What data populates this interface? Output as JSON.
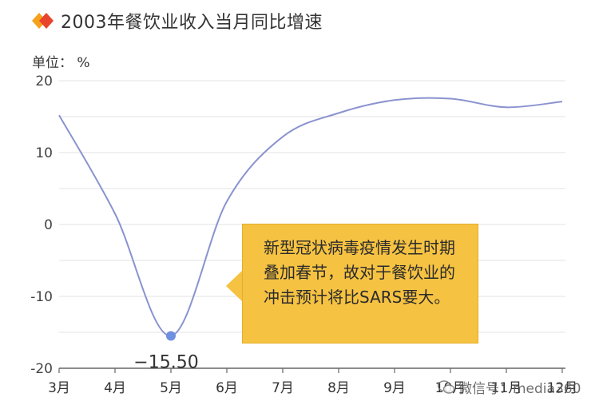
{
  "title": "2003年餐饮业收入当月同比增速",
  "unit_label": "单位：  %",
  "callout_text": "新型冠状病毒疫情发生时期叠加春节，故对于餐饮业的冲击预计将比SARS要大。",
  "watermark_text": "微信号：media360",
  "colors": {
    "line": "#8a93cf",
    "marker": "#6f8fe0",
    "grid": "#e3e3e3",
    "axis": "#666666",
    "callout_bg": "#f5c242",
    "icon_orange": "#f4a21c",
    "icon_red": "#e8452c"
  },
  "chart_data": {
    "type": "line",
    "title": "2003年餐饮业收入当月同比增速",
    "ylabel": "单位：  %",
    "categories": [
      "3月",
      "4月",
      "5月",
      "6月",
      "7月",
      "8月",
      "9月",
      "10月",
      "11月",
      "12月"
    ],
    "values": [
      15.2,
      1.5,
      -15.5,
      3.2,
      12.2,
      15.5,
      17.3,
      17.5,
      16.3,
      17.1
    ],
    "ylim": [
      -20,
      20
    ],
    "yticks": [
      20,
      10,
      0,
      -10,
      -20
    ],
    "grid": true,
    "highlight": {
      "category": "5月",
      "value": -15.5,
      "label": "−15.50"
    }
  }
}
